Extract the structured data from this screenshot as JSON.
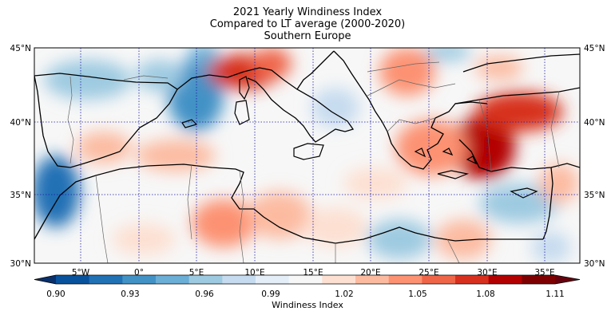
{
  "title": {
    "line1": "2021 Yearly Windiness Index",
    "line2": "Compared to LT average (2000-2020)",
    "line3": "Southern Europe"
  },
  "map": {
    "lat_labels": [
      "45°N",
      "40°N",
      "35°N",
      "30°N"
    ],
    "lon_labels": [
      "5°W",
      "0°",
      "5°E",
      "10°E",
      "15°E",
      "20°E",
      "25°E",
      "30°E",
      "35°E"
    ],
    "extent": {
      "lon_min": -9,
      "lon_max": 38,
      "lat_min": 30,
      "lat_max": 45
    },
    "grid_color": "#1a1aa6"
  },
  "colorbar": {
    "label": "Windiness Index",
    "ticks": [
      "0.90",
      "0.93",
      "0.96",
      "0.99",
      "1.02",
      "1.05",
      "1.08",
      "1.11"
    ],
    "colors": [
      "#08519c",
      "#2171b5",
      "#4292c6",
      "#6baed6",
      "#9ecae1",
      "#c6dbef",
      "#e4eef9",
      "#f7f7f7",
      "#fde0d2",
      "#fcbba1",
      "#fc9272",
      "#ef6548",
      "#d7301f",
      "#b30000",
      "#7f0000"
    ]
  }
}
